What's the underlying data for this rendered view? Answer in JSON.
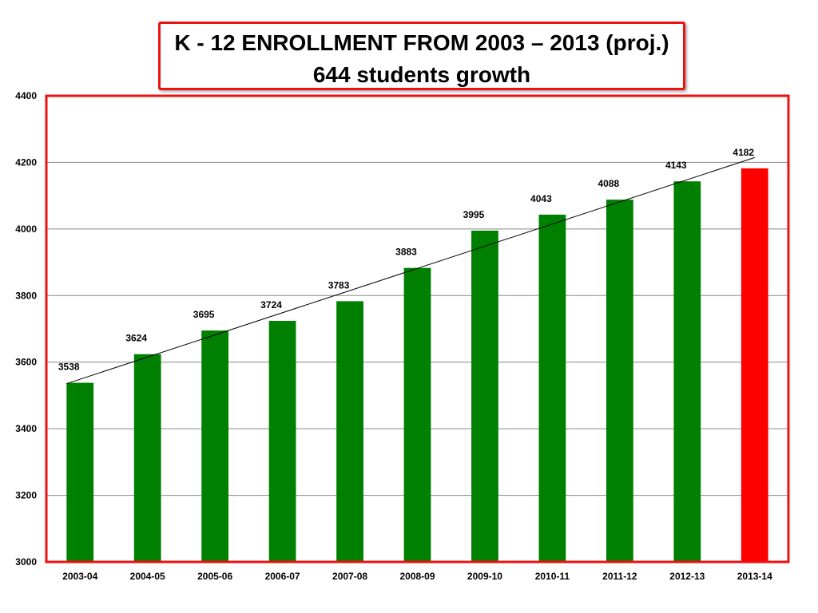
{
  "chart_data": {
    "type": "bar",
    "title": "K - 12 ENROLLMENT FROM 2003 – 2013 (proj.)",
    "subtitle": "644 students growth",
    "xlabel": "",
    "ylabel": "",
    "categories": [
      "2003-04",
      "2004-05",
      "2005-06",
      "2006-07",
      "2007-08",
      "2008-09",
      "2009-10",
      "2010-11",
      "2011-12",
      "2012-13",
      "2013-14"
    ],
    "values": [
      3538,
      3624,
      3695,
      3724,
      3783,
      3883,
      3995,
      4043,
      4088,
      4143,
      4182
    ],
    "data_labels": [
      "3538",
      "3624",
      "3695",
      "3724",
      "3783",
      "3883",
      "3995",
      "4043",
      "4088",
      "4143",
      "4182"
    ],
    "ylim": [
      3000,
      4400
    ],
    "yticks": [
      "3000",
      "3200",
      "3400",
      "3600",
      "3800",
      "4000",
      "4200",
      "4400"
    ],
    "grid": true,
    "legend": "none",
    "trendline": "linear",
    "colors": {
      "bar": "#008000",
      "highlight_bar": "#ff0000",
      "highlight_category": "2013-14",
      "frame": "#ee1111",
      "gridline": "#888888",
      "trendline": "#000000"
    }
  }
}
